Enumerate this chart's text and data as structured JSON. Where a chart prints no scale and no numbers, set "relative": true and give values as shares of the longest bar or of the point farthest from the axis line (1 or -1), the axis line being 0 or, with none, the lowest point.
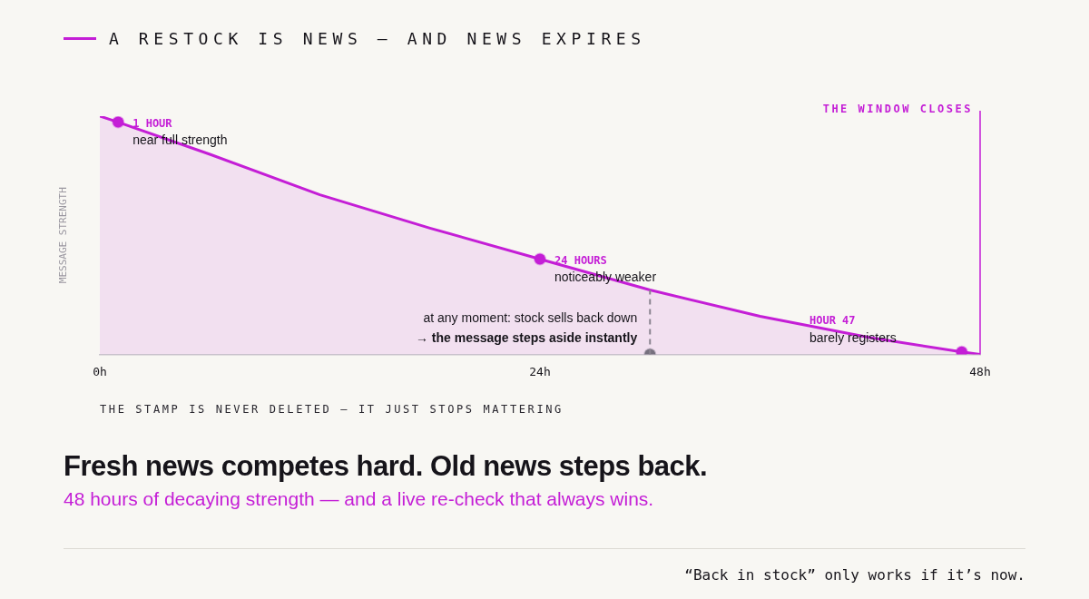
{
  "chart_data": {
    "type": "area",
    "title": "Fresh news competes hard. Old news steps back.",
    "subtitle": "48 hours of decaying strength — and a live re-check that always wins.",
    "ylabel": "MESSAGE STRENGTH",
    "relative": true,
    "xlim": [
      0,
      48
    ],
    "xticks": [
      {
        "value": 0,
        "label": "0h"
      },
      {
        "value": 24,
        "label": "24h"
      },
      {
        "value": 48,
        "label": "48h"
      }
    ],
    "grid": false,
    "legend": "top left",
    "series": [
      {
        "name": "A RESTOCK IS NEWS — AND NEWS EXPIRES",
        "color": "#c41ed6",
        "marker": "none",
        "x": [
          0,
          1,
          6,
          12,
          18,
          24,
          30,
          36,
          42,
          47,
          48
        ],
        "values": [
          1,
          0.975,
          0.84,
          0.67,
          0.53,
          0.4,
          0.27,
          0.16,
          0.07,
          0.01,
          0
        ]
      },
      {
        "type": "scatter",
        "color": "#c41ed6",
        "marker": "circle",
        "x": [
          1,
          24,
          47
        ],
        "values": [
          0.975,
          0.4,
          0.01
        ]
      },
      {
        "type": "scatter",
        "color": "#76707e",
        "marker": "circle",
        "x": [
          30
        ],
        "values": [
          0
        ]
      }
    ],
    "ref_lines": [
      {
        "axis": "x",
        "value": 30,
        "label": "at any moment: stock sells back down\n→ the message steps aside instantly",
        "line_style": "dashed",
        "color": "#8a8490"
      },
      {
        "axis": "x",
        "value": 48,
        "label": "THE WINDOW CLOSES",
        "color": "#c41ed6"
      }
    ],
    "annotations": [
      {
        "text": "1 HOUR\nnear full strength",
        "x": 1,
        "y": 0.975
      },
      {
        "text": "24 HOURS\nnoticeably weaker",
        "x": 24,
        "y": 0.4
      },
      "HOUR 47\nbarely registers",
      "THE STAMP IS NEVER DELETED — IT JUST STOPS MATTERING",
      "“Back in stock” only works if it’s now."
    ]
  }
}
